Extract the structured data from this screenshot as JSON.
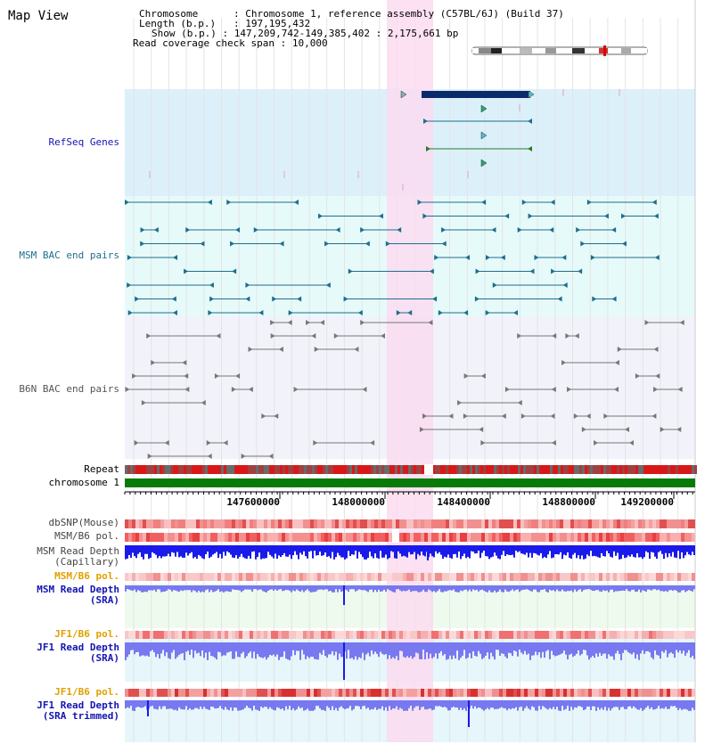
{
  "page_title": "Map View",
  "info": {
    "chromosome_key": "Chromosome",
    "chromosome_value": "Chromosome 1, reference assembly (C57BL/6J) (Build 37)",
    "length_key": "Length (b.p.)",
    "length_value": "197,195,432",
    "show_key": "Show (b.p.)",
    "show_value": "147,209,742-149,385,402 : 2,175,661 bp",
    "coverage_key": "Read coverage check span",
    "coverage_value": "10,000"
  },
  "tracks": {
    "refseq": "RefSeq Genes",
    "msm_bac": "MSM BAC end pairs",
    "b6n_bac": "B6N BAC end pairs",
    "repeat": "Repeat",
    "chromosome": "chromosome 1",
    "dbsnp": "dbSNP(Mouse)",
    "msm_pol": "MSM/B6 pol.",
    "msm_depth_cap_1": "MSM Read Depth",
    "msm_depth_cap_2": "(Capillary)",
    "msm_pol_2": "MSM/B6 pol.",
    "msm_depth_sra_1": "MSM Read Depth",
    "msm_depth_sra_2": "(SRA)",
    "jf1_pol": "JF1/B6 pol.",
    "jf1_depth_1": "JF1 Read Depth",
    "jf1_depth_2": "(SRA)",
    "jf1_pol_2": "JF1/B6 pol.",
    "jf1_trim_1": "JF1 Read Depth",
    "jf1_trim_2": "(SRA trimmed)"
  },
  "axis_ticks": [
    "147600000",
    "148000000",
    "148400000",
    "148800000",
    "149200000"
  ],
  "colors": {
    "refseq_bg": "#dcf0fa",
    "msm_bg": "#e6fafa",
    "b6n_bg": "#f2f2fa",
    "highlight": "#fadcf0",
    "gene": "#0a2a6e",
    "msm_feature": "#1e6e8c",
    "b6n_feature": "#6e6e6e",
    "chromosome": "#087a08",
    "depth": "#1a1aeb",
    "depth_light": "#7878f0",
    "label_blue": "#1414b4",
    "label_orange": "#e0a000",
    "label_teal": "#1e6e8c"
  }
}
